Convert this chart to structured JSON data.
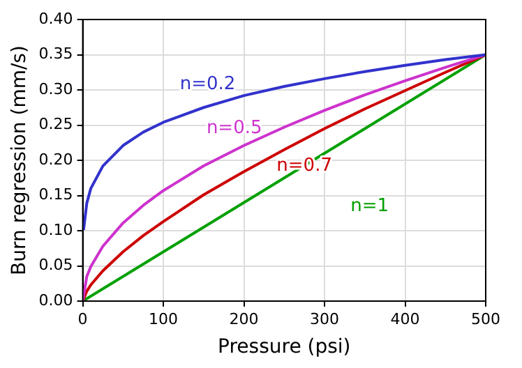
{
  "chart_data": {
    "type": "line",
    "xlabel": "Pressure (psi)",
    "ylabel": "Burn regression (mm/s)",
    "xlim": [
      0,
      500
    ],
    "xticks": [
      0,
      100,
      200,
      300,
      400,
      500
    ],
    "ylim": [
      0,
      0.4
    ],
    "yticks": [
      {
        "value": 0,
        "label": "0.00"
      },
      {
        "value": 0.05,
        "label": "0.05"
      },
      {
        "value": 0.1,
        "label": "0.10"
      },
      {
        "value": 0.15,
        "label": "0.15"
      },
      {
        "value": 0.2,
        "label": "0.20"
      },
      {
        "value": 0.25,
        "label": "0.25"
      },
      {
        "value": 0.3,
        "label": "0.30"
      },
      {
        "value": 0.35,
        "label": "0.35"
      },
      {
        "value": 0.4,
        "label": "0.40"
      }
    ],
    "grid": true,
    "legend": false,
    "marker": "none",
    "line_style": "solid",
    "series": [
      {
        "name": "n=0.2",
        "color": "#3232cd",
        "x": [
          1,
          5,
          10,
          25,
          50,
          75,
          100,
          150,
          200,
          250,
          300,
          350,
          400,
          450,
          500
        ],
        "values": [
          0.101,
          0.139,
          0.16,
          0.192,
          0.221,
          0.24,
          0.254,
          0.275,
          0.292,
          0.305,
          0.316,
          0.326,
          0.335,
          0.343,
          0.35
        ]
      },
      {
        "name": "n=0.5",
        "color": "#cd32cd",
        "x": [
          0,
          5,
          10,
          25,
          50,
          75,
          100,
          150,
          200,
          250,
          300,
          350,
          400,
          450,
          500
        ],
        "values": [
          0,
          0.035,
          0.049,
          0.078,
          0.111,
          0.136,
          0.157,
          0.192,
          0.221,
          0.247,
          0.271,
          0.293,
          0.313,
          0.332,
          0.35
        ]
      },
      {
        "name": "n=0.7",
        "color": "#cd0000",
        "x": [
          0,
          5,
          10,
          25,
          50,
          75,
          100,
          150,
          200,
          250,
          300,
          350,
          400,
          450,
          500
        ],
        "values": [
          0,
          0.014,
          0.023,
          0.043,
          0.07,
          0.093,
          0.113,
          0.151,
          0.184,
          0.215,
          0.245,
          0.273,
          0.299,
          0.325,
          0.35
        ]
      },
      {
        "name": "n=1",
        "color": "#00a000",
        "x": [
          0,
          500
        ],
        "values": [
          0,
          0.35
        ]
      }
    ]
  }
}
